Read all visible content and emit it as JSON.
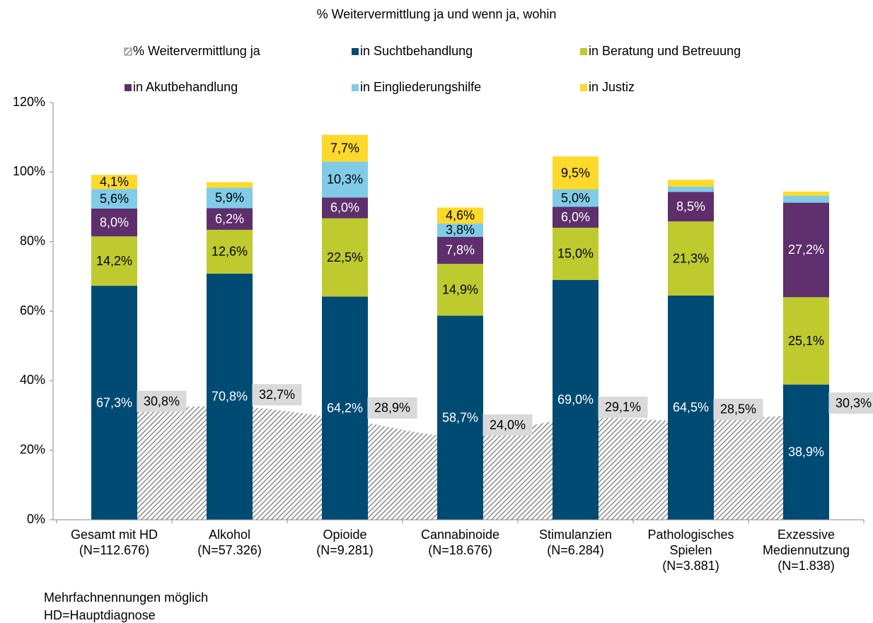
{
  "chart_data": {
    "type": "bar",
    "stacked": true,
    "title": "% Weitervermittlung ja und wenn ja, wohin",
    "categories": [
      [
        "Gesamt mit HD",
        "(N=112.676)"
      ],
      [
        "Alkohol",
        "(N=57.326)"
      ],
      [
        "Opioide",
        "(N=9.281)"
      ],
      [
        "Cannabinoide",
        "(N=18.676)"
      ],
      [
        "Stimulanzien",
        "(N=6.284)"
      ],
      [
        "Pathologisches",
        "Spielen",
        "(N=3.881)"
      ],
      [
        "Exzessive",
        "Mediennutzung",
        "(N=1.838)"
      ]
    ],
    "area": {
      "name": "% Weitervermittlung ja",
      "color": "#9a9a9a",
      "values": [
        30.8,
        32.7,
        28.9,
        24.0,
        29.1,
        28.5,
        30.3
      ],
      "value_labels": [
        "30,8%",
        "32,7%",
        "28,9%",
        "24,0%",
        "29,1%",
        "28,5%",
        "30,3%"
      ]
    },
    "series": [
      {
        "name": "in Suchtbehandlung",
        "color": "#004b73",
        "values": [
          67.3,
          70.8,
          64.2,
          58.7,
          69.0,
          64.5,
          38.9
        ],
        "value_labels": [
          "67,3%",
          "70,8%",
          "64,2%",
          "58,7%",
          "69,0%",
          "64,5%",
          "38,9%"
        ]
      },
      {
        "name": "in Beratung und Betreuung",
        "color": "#bfca2f",
        "values": [
          14.2,
          12.6,
          22.5,
          14.9,
          15.0,
          21.3,
          25.1
        ],
        "value_labels": [
          "14,2%",
          "12,6%",
          "22,5%",
          "14,9%",
          "15,0%",
          "21,3%",
          "25,1%"
        ]
      },
      {
        "name": "in Akutbehandlung",
        "color": "#5e2f6c",
        "values": [
          8.0,
          6.2,
          6.0,
          7.8,
          6.0,
          8.5,
          27.2
        ],
        "value_labels": [
          "8,0%",
          "6,2%",
          "6,0%",
          "7,8%",
          "6,0%",
          "8,5%",
          "27,2%"
        ]
      },
      {
        "name": "in Eingliederungshilfe",
        "color": "#80cbe7",
        "values": [
          5.6,
          5.9,
          10.3,
          3.8,
          5.0,
          1.5,
          2.0
        ],
        "value_labels": [
          "5,6%",
          "5,9%",
          "10,3%",
          "3,8%",
          "5,0%",
          null,
          null
        ]
      },
      {
        "name": "in Justiz",
        "color": "#fcd92b",
        "values": [
          4.1,
          1.6,
          7.7,
          4.6,
          9.5,
          2.0,
          1.2
        ],
        "value_labels": [
          "4,1%",
          null,
          "7,7%",
          "4,6%",
          "9,5%",
          null,
          null
        ]
      }
    ],
    "ylim": [
      0,
      120
    ],
    "yticks": [
      {
        "value": 0,
        "label": "0%"
      },
      {
        "value": 20,
        "label": "20%"
      },
      {
        "value": 40,
        "label": "40%"
      },
      {
        "value": 60,
        "label": "60%"
      },
      {
        "value": 80,
        "label": "80%"
      },
      {
        "value": 100,
        "label": "100%"
      },
      {
        "value": 120,
        "label": "120%"
      }
    ],
    "grid": false,
    "legend": "top",
    "notes": [
      "Mehrfachnennungen möglich",
      "HD=Hauptdiagnose"
    ]
  }
}
